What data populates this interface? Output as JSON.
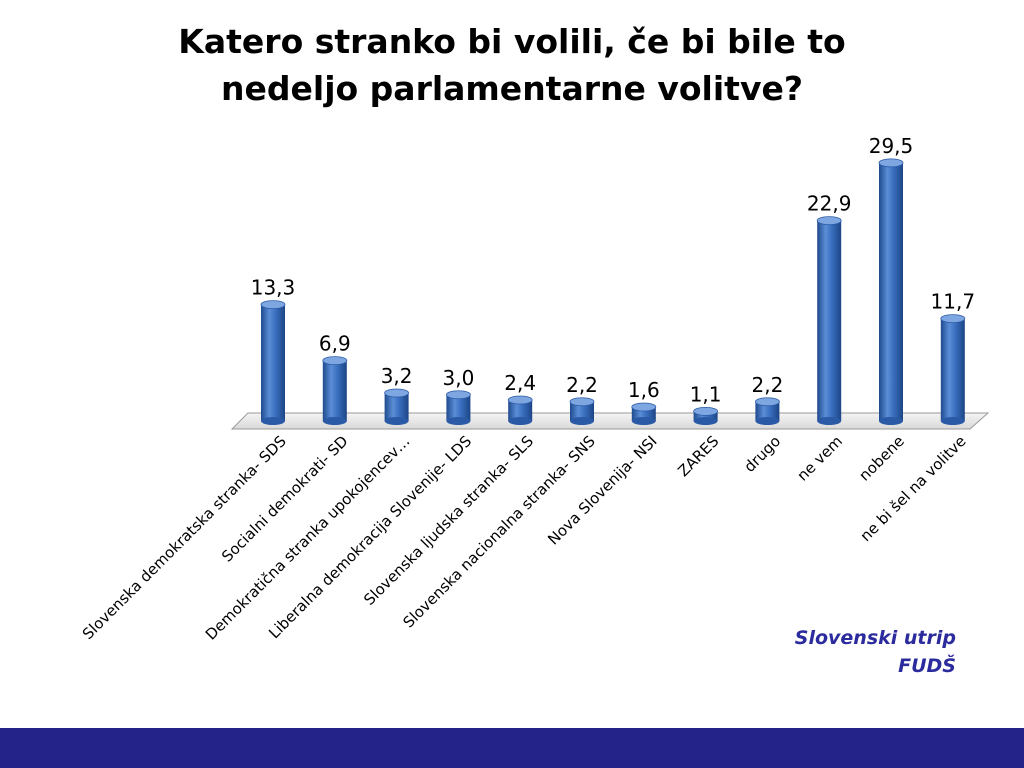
{
  "title": {
    "line1": "Katero stranko bi volili, če bi bile to",
    "line2": "nedeljo parlamentarne volitve?"
  },
  "source": {
    "line1": "Slovenski utrip",
    "line2": "FUDŠ"
  },
  "colors": {
    "bar": "#3a6fc0",
    "bar_dark": "#1f4a8e",
    "bar_light": "#7ea6e0",
    "source_text": "#2b2b9e",
    "footer": "#23238a"
  },
  "chart_data": {
    "type": "bar",
    "title": "Katero stranko bi volili, če bi bile to nedeljo parlamentarne volitve?",
    "categories": [
      "Slovenska demokratska stranka- SDS",
      "Socialni demokrati- SD",
      "Demokratična stranka upokojencev…",
      "Liberalna demokracija Slovenije- LDS",
      "Slovenska ljudska stranka- SLS",
      "Slovenska nacionalna stranka- SNS",
      "Nova Slovenija- NSI",
      "ZARES",
      "drugo",
      "ne vem",
      "nobene",
      "ne bi šel na volitve"
    ],
    "values": [
      13.3,
      6.9,
      3.2,
      3.0,
      2.4,
      2.2,
      1.6,
      1.1,
      2.2,
      22.9,
      29.5,
      11.7
    ],
    "value_labels": [
      "13,3",
      "6,9",
      "3,2",
      "3,0",
      "2,4",
      "2,2",
      "1,6",
      "1,1",
      "2,2",
      "22,9",
      "29,5",
      "11,7"
    ],
    "xlabel": "",
    "ylabel": "",
    "grid": false,
    "legend": "none"
  }
}
